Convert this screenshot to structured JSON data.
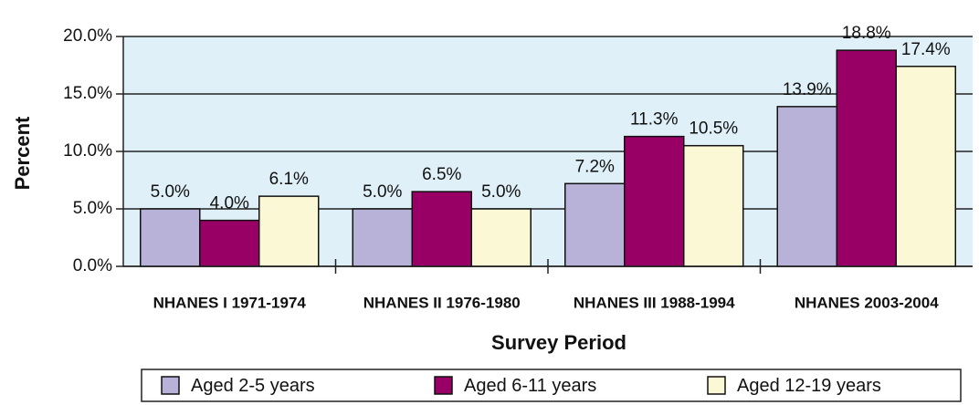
{
  "chart_data": {
    "type": "bar",
    "x_label": "Survey Period",
    "y_label": "Percent",
    "categories": [
      "NHANES I 1971-1974",
      "NHANES II 1976-1980",
      "NHANES III 1988-1994",
      "NHANES 2003-2004"
    ],
    "series": [
      {
        "name": "Aged 2-5 years",
        "color": "#b8b2d8",
        "values": [
          5.0,
          5.0,
          7.2,
          13.9
        ],
        "value_labels": [
          "5.0%",
          "5.0%",
          "7.2%",
          "13.9%"
        ]
      },
      {
        "name": "Aged 6-11 years",
        "color": "#990066",
        "values": [
          4.0,
          6.5,
          11.3,
          18.8
        ],
        "value_labels": [
          "4.0%",
          "6.5%",
          "11.3%",
          "18.8%"
        ]
      },
      {
        "name": "Aged 12-19 years",
        "color": "#fbf8d6",
        "values": [
          6.1,
          5.0,
          10.5,
          17.4
        ],
        "value_labels": [
          "6.1%",
          "5.0%",
          "10.5%",
          "17.4%"
        ]
      }
    ],
    "ylim": [
      0,
      20
    ],
    "yticks": [
      {
        "value": 0,
        "label": "0.0%"
      },
      {
        "value": 5,
        "label": "5.0%"
      },
      {
        "value": 10,
        "label": "10.0%"
      },
      {
        "value": 15,
        "label": "15.0%"
      },
      {
        "value": 20,
        "label": "20.0%"
      }
    ],
    "grid": true,
    "plot_background": "#dff0f8",
    "legend": "bottom"
  }
}
